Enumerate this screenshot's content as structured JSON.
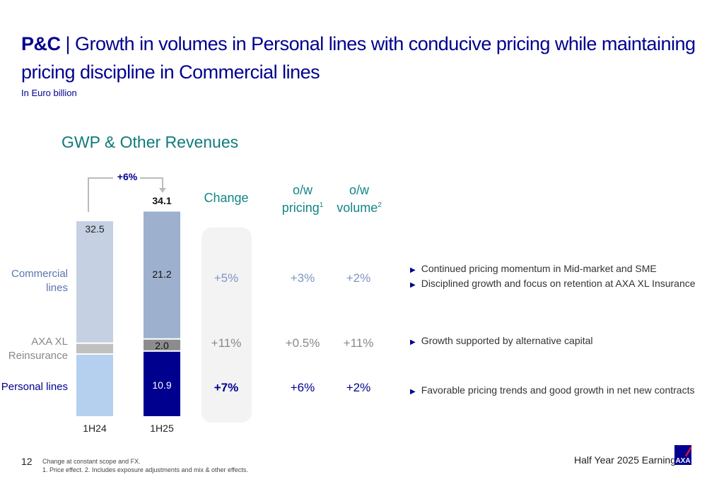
{
  "header": {
    "title_bold": "P&C",
    "title_sep": " | ",
    "title_rest": "Growth in volumes in Personal lines with conducive pricing while maintaining pricing discipline in Commercial lines",
    "subtitle": "In Euro billion"
  },
  "chart_data": {
    "type": "bar",
    "stacked": true,
    "title": "GWP & Other Revenues",
    "categories": [
      "1H24",
      "1H25"
    ],
    "series": [
      {
        "name": "Personal lines",
        "values": [
          10.4,
          10.9
        ],
        "colors": [
          "#b5cfee",
          "#00008f"
        ]
      },
      {
        "name": "AXA XL Reinsurance",
        "values": [
          1.8,
          2.0
        ],
        "colors": [
          "#c0c0c0",
          "#8c8c8c"
        ]
      },
      {
        "name": "Commercial lines",
        "values": [
          20.3,
          21.2
        ],
        "colors": [
          "#c5d0e2",
          "#9db0cd"
        ]
      }
    ],
    "totals": [
      "32.5",
      "34.1"
    ],
    "segment_labels_1H25": [
      "10.9",
      "2.0",
      "21.2"
    ],
    "growth_label": "+6%",
    "legend_placement": "left"
  },
  "table": {
    "headers": {
      "change": "Change",
      "pricing": "o/w pricing",
      "pricing_sup": "1",
      "volume": "o/w volume",
      "volume_sup": "2"
    },
    "rows": [
      {
        "label": "Commercial lines",
        "change": "+5%",
        "pricing": "+3%",
        "volume": "+2%",
        "color": "#7f95c2",
        "label_color": "#5a74b0"
      },
      {
        "label": "AXA XL Reinsurance",
        "change": "+11%",
        "pricing": "+0.5%",
        "volume": "+11%",
        "color": "#888888",
        "label_color": "#888888"
      },
      {
        "label": "Personal lines",
        "change": "+7%",
        "pricing": "+6%",
        "volume": "+2%",
        "color": "#00008f",
        "label_color": "#00008f"
      }
    ]
  },
  "bullets": [
    "Continued pricing momentum in Mid-market and SME",
    "Disciplined growth and focus on retention at AXA XL Insurance",
    "Growth supported by alternative capital",
    "Favorable pricing trends and good growth in net new contracts"
  ],
  "footer": {
    "page": "12",
    "note1": "Change at constant scope and FX.",
    "note2": "1. Price effect. 2. Includes exposure adjustments and mix & other effects.",
    "right": "Half Year 2025 Earnings",
    "logo": "AXA"
  }
}
